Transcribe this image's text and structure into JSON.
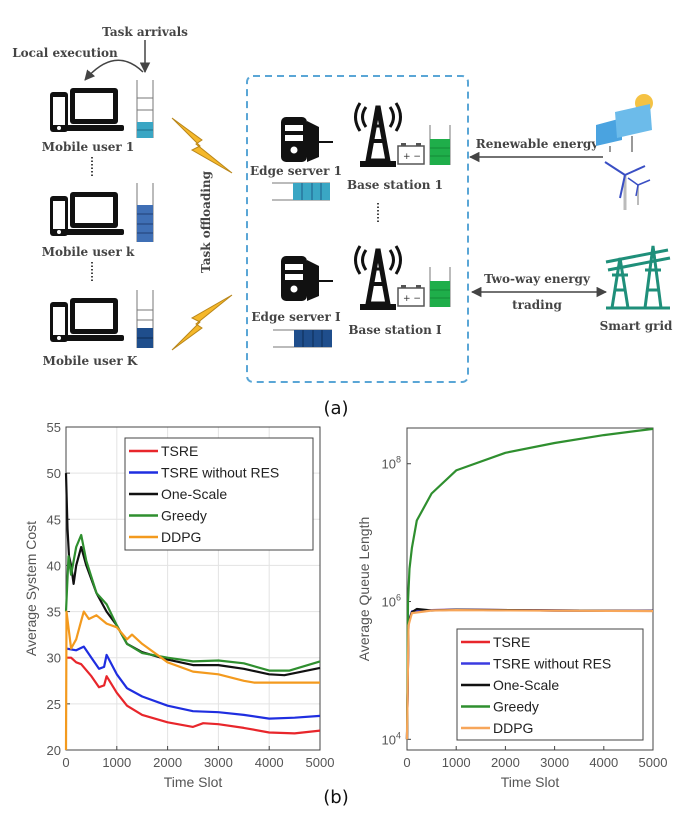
{
  "diagram": {
    "task_arrivals": "Task arrivals",
    "local_execution": "Local execution",
    "users": [
      "Mobile user 1",
      "Mobile user k",
      "Mobile user K"
    ],
    "task_offloading": "Task offloading",
    "edge_servers": [
      "Edge server 1",
      "Edge server I"
    ],
    "base_stations": [
      "Base station 1",
      "Base station I"
    ],
    "renewable_energy": "Renewable energy",
    "two_way_line1": "Two-way energy",
    "two_way_line2": "trading",
    "smart_grid": "Smart grid",
    "colors": {
      "bolt": "#f5b82a",
      "queue_teal": "#3aa6c4",
      "queue_blue": "#3f6fb5",
      "queue_dark": "#1f4e8c",
      "battery_green": "#1fae4a",
      "dashed_box": "#5aa6d6",
      "grid": "#1f8f7a"
    }
  },
  "label_a": "(a)",
  "label_b": "(b)",
  "chart_data": [
    {
      "type": "line",
      "xlabel": "Time Slot",
      "ylabel": "Average System Cost",
      "xlim": [
        0,
        5000
      ],
      "ylim": [
        20,
        55
      ],
      "xticks": [
        0,
        1000,
        2000,
        3000,
        4000,
        5000
      ],
      "yticks": [
        20,
        25,
        30,
        35,
        40,
        45,
        50,
        55
      ],
      "grid": true,
      "legend": "top-right",
      "series": [
        {
          "name": "TSRE",
          "color": "#e8262b",
          "x": [
            0,
            100,
            200,
            300,
            500,
            650,
            750,
            800,
            1000,
            1200,
            1500,
            2000,
            2500,
            2700,
            3000,
            3500,
            4000,
            4500,
            5000
          ],
          "y": [
            30,
            30,
            29.5,
            29.3,
            28,
            26.8,
            27,
            28,
            26.2,
            24.8,
            23.8,
            23,
            22.5,
            22.9,
            22.8,
            22.4,
            21.9,
            21.8,
            22.1
          ]
        },
        {
          "name": "TSRE without RES",
          "color": "#1f2ee0",
          "x": [
            0,
            200,
            350,
            500,
            650,
            750,
            800,
            1000,
            1200,
            1500,
            2000,
            2500,
            3000,
            3500,
            4000,
            4500,
            5000
          ],
          "y": [
            31,
            30.8,
            31.2,
            30,
            28.8,
            29,
            30.3,
            28.2,
            26.7,
            25.8,
            24.8,
            24.2,
            24.1,
            23.8,
            23.4,
            23.5,
            23.7
          ]
        },
        {
          "name": "One-Scale",
          "color": "#111111",
          "x": [
            0,
            30,
            60,
            100,
            150,
            200,
            300,
            400,
            600,
            800,
            1000,
            1200,
            1500,
            2000,
            2500,
            3000,
            3500,
            4000,
            4300,
            5000
          ],
          "y": [
            50,
            44,
            41,
            40,
            38,
            40,
            42,
            40,
            37,
            35,
            33.5,
            31.5,
            30.6,
            29.8,
            29.2,
            29.2,
            28.8,
            28.2,
            28.1,
            28.9
          ]
        },
        {
          "name": "Greedy",
          "color": "#2f8f2f",
          "x": [
            0,
            50,
            100,
            200,
            300,
            400,
            600,
            800,
            1000,
            1200,
            1500,
            2000,
            2500,
            3000,
            3500,
            4000,
            4400,
            5000
          ],
          "y": [
            35,
            41,
            39,
            42,
            43.3,
            40.5,
            37,
            35.8,
            33.5,
            31.5,
            30.5,
            30,
            29.6,
            29.7,
            29.4,
            28.6,
            28.6,
            29.6
          ]
        },
        {
          "name": "DDPG",
          "color": "#f39a1e",
          "x": [
            0,
            10,
            100,
            200,
            300,
            350,
            450,
            600,
            800,
            1000,
            1200,
            1300,
            1500,
            2000,
            2500,
            3000,
            3500,
            3700,
            5000
          ],
          "y": [
            20,
            35,
            31,
            32,
            34,
            35,
            34.2,
            34.6,
            33.7,
            33.3,
            32,
            32.5,
            31.5,
            29.5,
            28.5,
            28.2,
            27.5,
            27.3,
            27.3
          ]
        }
      ]
    },
    {
      "type": "line",
      "xlabel": "Time Slot",
      "ylabel": "Average Queue Length",
      "xlim": [
        0,
        5000
      ],
      "ylim": [
        7000,
        330000000
      ],
      "yscale": "log",
      "xticks": [
        0,
        1000,
        2000,
        3000,
        4000,
        5000
      ],
      "yticks": [
        {
          "value": 10000,
          "base": "10",
          "exp": "4"
        },
        {
          "value": 1000000,
          "base": "10",
          "exp": "6"
        },
        {
          "value": 100000000,
          "base": "10",
          "exp": "8"
        }
      ],
      "grid": false,
      "legend": "bottom-right",
      "series": [
        {
          "name": "TSRE",
          "color": "#e8262b",
          "x": [
            0,
            30,
            100,
            500,
            1000,
            3000,
            5000
          ],
          "y": [
            10000,
            500000,
            700000,
            750000,
            760000,
            740000,
            730000
          ]
        },
        {
          "name": "TSRE without RES",
          "color": "#3b3be0",
          "x": [
            0,
            30,
            100,
            500,
            1000,
            3000,
            5000
          ],
          "y": [
            10000,
            500000,
            720000,
            750000,
            760000,
            740000,
            730000
          ]
        },
        {
          "name": "One-Scale",
          "color": "#111111",
          "x": [
            0,
            30,
            100,
            200,
            500,
            1000,
            3000,
            5000
          ],
          "y": [
            10000,
            500000,
            700000,
            780000,
            740000,
            760000,
            740000,
            730000
          ]
        },
        {
          "name": "Greedy",
          "color": "#2f8f2f",
          "x": [
            0,
            20,
            50,
            100,
            200,
            500,
            1000,
            2000,
            3000,
            4000,
            5000
          ],
          "y": [
            10000,
            1000000,
            3000000,
            6000000,
            15000000,
            37000000,
            80000000,
            144000000,
            200000000,
            260000000,
            320000000
          ]
        },
        {
          "name": "DDPG",
          "color": "#f7a65a",
          "x": [
            0,
            30,
            100,
            500,
            1000,
            3000,
            5000
          ],
          "y": [
            10000,
            450000,
            680000,
            740000,
            750000,
            735000,
            725000
          ]
        }
      ]
    }
  ]
}
